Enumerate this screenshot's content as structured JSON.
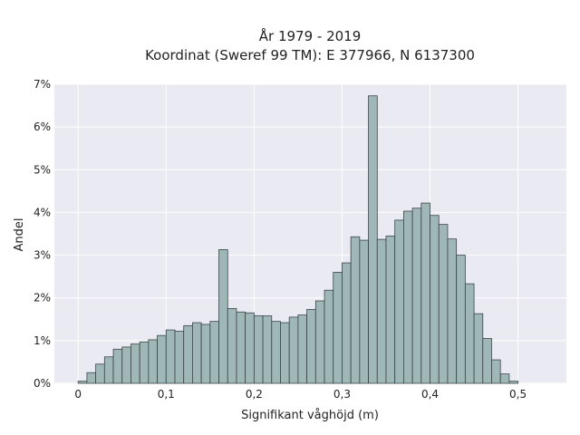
{
  "chart_data": {
    "type": "bar",
    "title": "År 1979 - 2019",
    "subtitle": "Koordinat (Sweref 99 TM): E 377966, N 6137300",
    "xlabel": "Signifikant våghöjd (m)",
    "ylabel": "Andel",
    "xlim": [
      -0.027,
      0.555
    ],
    "ylim": [
      0,
      7
    ],
    "x_ticks": [
      0,
      0.1,
      0.2,
      0.3,
      0.4,
      0.5
    ],
    "x_tick_labels": [
      "0",
      "0,1",
      "0,2",
      "0,3",
      "0,4",
      "0,5"
    ],
    "y_ticks": [
      0,
      1,
      2,
      3,
      4,
      5,
      6,
      7
    ],
    "y_tick_labels": [
      "0%",
      "1%",
      "2%",
      "3%",
      "4%",
      "5%",
      "6%",
      "7%"
    ],
    "grid": true,
    "bin_start": 0,
    "bin_width": 0.01,
    "values": [
      0.05,
      0.25,
      0.45,
      0.62,
      0.8,
      0.85,
      0.92,
      0.97,
      1.02,
      1.12,
      1.25,
      1.22,
      1.35,
      1.42,
      1.38,
      1.45,
      3.13,
      1.75,
      1.67,
      1.65,
      1.58,
      1.58,
      1.45,
      1.42,
      1.55,
      1.6,
      1.73,
      1.93,
      2.18,
      2.6,
      2.82,
      3.43,
      3.35,
      6.73,
      3.37,
      3.45,
      3.82,
      4.03,
      4.1,
      4.22,
      3.93,
      3.72,
      3.38,
      3.0,
      2.33,
      1.63,
      1.05,
      0.55,
      0.22,
      0.05
    ],
    "colors": {
      "bar_fill": "#9fb7b7",
      "bar_stroke": "#3b4545",
      "plot_background": "#eaeaf2",
      "grid": "#ffffff"
    }
  }
}
